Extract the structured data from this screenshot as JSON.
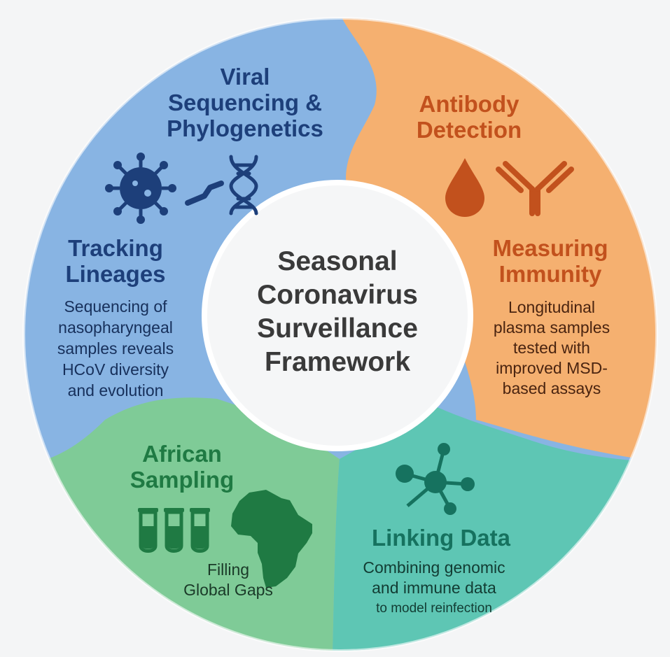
{
  "center": {
    "title": [
      "Seasonal",
      "Coronavirus",
      "Surveillance",
      "Framework"
    ]
  },
  "segments": {
    "sequencing": {
      "title": [
        "Viral",
        "Sequencing &",
        "Phylogenetics"
      ],
      "color": "#88b4e3",
      "icons": [
        "virus-icon",
        "arm-icon",
        "dna-icon"
      ]
    },
    "tracking": {
      "title": [
        "Tracking",
        "Lineages"
      ],
      "body": [
        "Sequencing of",
        "nasopharyngeal",
        "samples reveals",
        "HCoV diversity",
        "and evolution"
      ]
    },
    "antibody": {
      "title": [
        "Antibody",
        "Detection"
      ],
      "color": "#f5b070",
      "icons": [
        "blood-drop-icon",
        "antibody-icon"
      ]
    },
    "immunity": {
      "title": [
        "Measuring",
        "Immunity"
      ],
      "body": [
        "Longitudinal",
        "plasma samples",
        "tested with",
        "improved MSD-",
        "based assays"
      ]
    },
    "african": {
      "title": [
        "African",
        "Sampling"
      ],
      "body": [
        "Filling",
        "Global Gaps"
      ],
      "color": "#7fcb97",
      "icons": [
        "test-tube-icon",
        "test-tube-icon",
        "test-tube-icon",
        "africa-map-icon"
      ]
    },
    "linking": {
      "title": [
        "Linking Data"
      ],
      "body": [
        "Combining genomic",
        "and immune data",
        "to model reinfection"
      ],
      "color": "#5ec6b4",
      "icons": [
        "network-icon"
      ]
    }
  }
}
